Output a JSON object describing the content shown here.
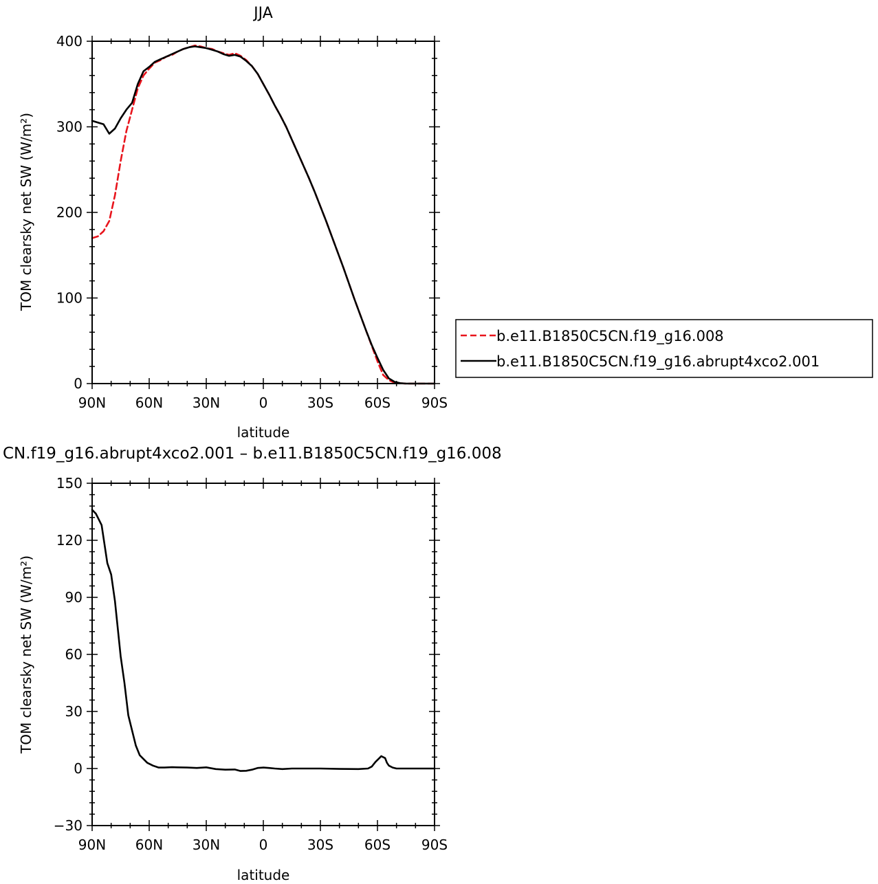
{
  "chart_data": [
    {
      "type": "line",
      "title": "JJA",
      "xlabel": "latitude",
      "ylabel": "TOM clearsky net SW (W/m²)",
      "xlim": [
        90,
        -90
      ],
      "ylim": [
        0,
        400
      ],
      "xticks": [
        {
          "value": 90,
          "label": "90N"
        },
        {
          "value": 60,
          "label": "60N"
        },
        {
          "value": 30,
          "label": "30N"
        },
        {
          "value": 0,
          "label": "0"
        },
        {
          "value": -30,
          "label": "30S"
        },
        {
          "value": -60,
          "label": "60S"
        },
        {
          "value": -90,
          "label": "90S"
        }
      ],
      "yticks": [
        {
          "value": 0,
          "label": "0"
        },
        {
          "value": 100,
          "label": "100"
        },
        {
          "value": 200,
          "label": "200"
        },
        {
          "value": 300,
          "label": "300"
        },
        {
          "value": 400,
          "label": "400"
        }
      ],
      "legend": {
        "placement": "right",
        "entries": [
          "b.e11.B1850C5CN.f19_g16.008",
          "b.e11.B1850C5CN.f19_g16.abrupt4xco2.001"
        ]
      },
      "series": [
        {
          "name": "b.e11.B1850C5CN.f19_g16.008",
          "color": "#e8141c",
          "dash": true,
          "x": [
            90,
            87,
            84,
            81,
            78,
            75,
            72,
            69,
            66,
            63,
            60,
            57,
            54,
            51,
            48,
            45,
            42,
            39,
            36,
            33,
            30,
            27,
            24,
            21,
            18,
            15,
            12,
            9,
            6,
            3,
            0,
            -3,
            -6,
            -9,
            -12,
            -15,
            -18,
            -21,
            -24,
            -27,
            -30,
            -33,
            -36,
            -39,
            -42,
            -45,
            -48,
            -51,
            -54,
            -57,
            -60,
            -63,
            -66,
            -69,
            -72,
            -75,
            -78,
            -81,
            -84,
            -87,
            -90
          ],
          "y": [
            170,
            172,
            178,
            190,
            220,
            260,
            295,
            320,
            345,
            360,
            368,
            375,
            378,
            382,
            384,
            388,
            391,
            393,
            395,
            394,
            392,
            391,
            388,
            386,
            384,
            386,
            383,
            378,
            371,
            362,
            350,
            338,
            325,
            313,
            300,
            285,
            270,
            255,
            240,
            224,
            207,
            190,
            172,
            154,
            136,
            117,
            98,
            80,
            62,
            44,
            26,
            10,
            4,
            1,
            0.3,
            0,
            0,
            0,
            0,
            0,
            0
          ]
        },
        {
          "name": "b.e11.B1850C5CN.f19_g16.abrupt4xco2.001",
          "color": "#000000",
          "dash": false,
          "x": [
            90,
            87,
            84,
            81,
            78,
            75,
            72,
            69,
            66,
            63,
            60,
            57,
            54,
            51,
            48,
            45,
            42,
            39,
            36,
            33,
            30,
            27,
            24,
            21,
            18,
            15,
            12,
            9,
            6,
            3,
            0,
            -3,
            -6,
            -9,
            -12,
            -15,
            -18,
            -21,
            -24,
            -27,
            -30,
            -33,
            -36,
            -39,
            -42,
            -45,
            -48,
            -51,
            -54,
            -57,
            -60,
            -63,
            -66,
            -69,
            -72,
            -75,
            -78,
            -81,
            -84,
            -87,
            -90
          ],
          "y": [
            307,
            305,
            303,
            292,
            298,
            310,
            320,
            328,
            350,
            365,
            370,
            376,
            379,
            382,
            385,
            388,
            391,
            393,
            394,
            393,
            392,
            390,
            388,
            385,
            383,
            384,
            382,
            377,
            371,
            362,
            350,
            338,
            325,
            313,
            300,
            285,
            270,
            255,
            240,
            224,
            207,
            190,
            172,
            154,
            136,
            117,
            98,
            80,
            62,
            45,
            30,
            16,
            6,
            2,
            0.5,
            0,
            0,
            0,
            0,
            0,
            0
          ]
        }
      ]
    },
    {
      "type": "line",
      "title": "CN.f19_g16.abrupt4xco2.001 – b.e11.B1850C5CN.f19_g16.008",
      "xlabel": "latitude",
      "ylabel": "TOM clearsky net SW (W/m²)",
      "xlim": [
        90,
        -90
      ],
      "ylim": [
        -30,
        150
      ],
      "xticks": [
        {
          "value": 90,
          "label": "90N"
        },
        {
          "value": 60,
          "label": "60N"
        },
        {
          "value": 30,
          "label": "30N"
        },
        {
          "value": 0,
          "label": "0"
        },
        {
          "value": -30,
          "label": "30S"
        },
        {
          "value": -60,
          "label": "60S"
        },
        {
          "value": -90,
          "label": "90S"
        }
      ],
      "yticks": [
        {
          "value": -30,
          "label": "−30"
        },
        {
          "value": 0,
          "label": "0"
        },
        {
          "value": 30,
          "label": "30"
        },
        {
          "value": 60,
          "label": "60"
        },
        {
          "value": 90,
          "label": "90"
        },
        {
          "value": 120,
          "label": "120"
        },
        {
          "value": 150,
          "label": "150"
        }
      ],
      "series": [
        {
          "color": "#000000",
          "dash": false,
          "x": [
            90,
            88,
            85,
            82,
            80,
            78,
            75,
            73,
            71,
            69,
            67,
            65,
            63,
            61,
            58,
            55,
            52,
            48,
            45,
            40,
            35,
            30,
            25,
            20,
            15,
            12,
            9,
            6,
            3,
            0,
            -3,
            -6,
            -10,
            -15,
            -20,
            -30,
            -40,
            -50,
            -55,
            -57,
            -59,
            -61,
            -62,
            -63,
            -64,
            -65,
            -66,
            -68,
            -70,
            -75,
            -80,
            -85,
            -90
          ],
          "y": [
            136,
            134,
            128,
            108,
            102,
            88,
            59,
            45,
            28,
            20,
            12,
            7,
            5,
            3,
            1.5,
            0.5,
            0.5,
            0.7,
            0.6,
            0.5,
            0.3,
            0.6,
            -0.3,
            -0.6,
            -0.5,
            -1.3,
            -1.2,
            -0.6,
            0.3,
            0.5,
            0.3,
            0,
            -0.3,
            0,
            0,
            0,
            -0.2,
            -0.3,
            0,
            1,
            3.5,
            5.5,
            6.5,
            6,
            5.5,
            3,
            1.5,
            0.5,
            0,
            0,
            0,
            0,
            0
          ]
        }
      ]
    }
  ]
}
